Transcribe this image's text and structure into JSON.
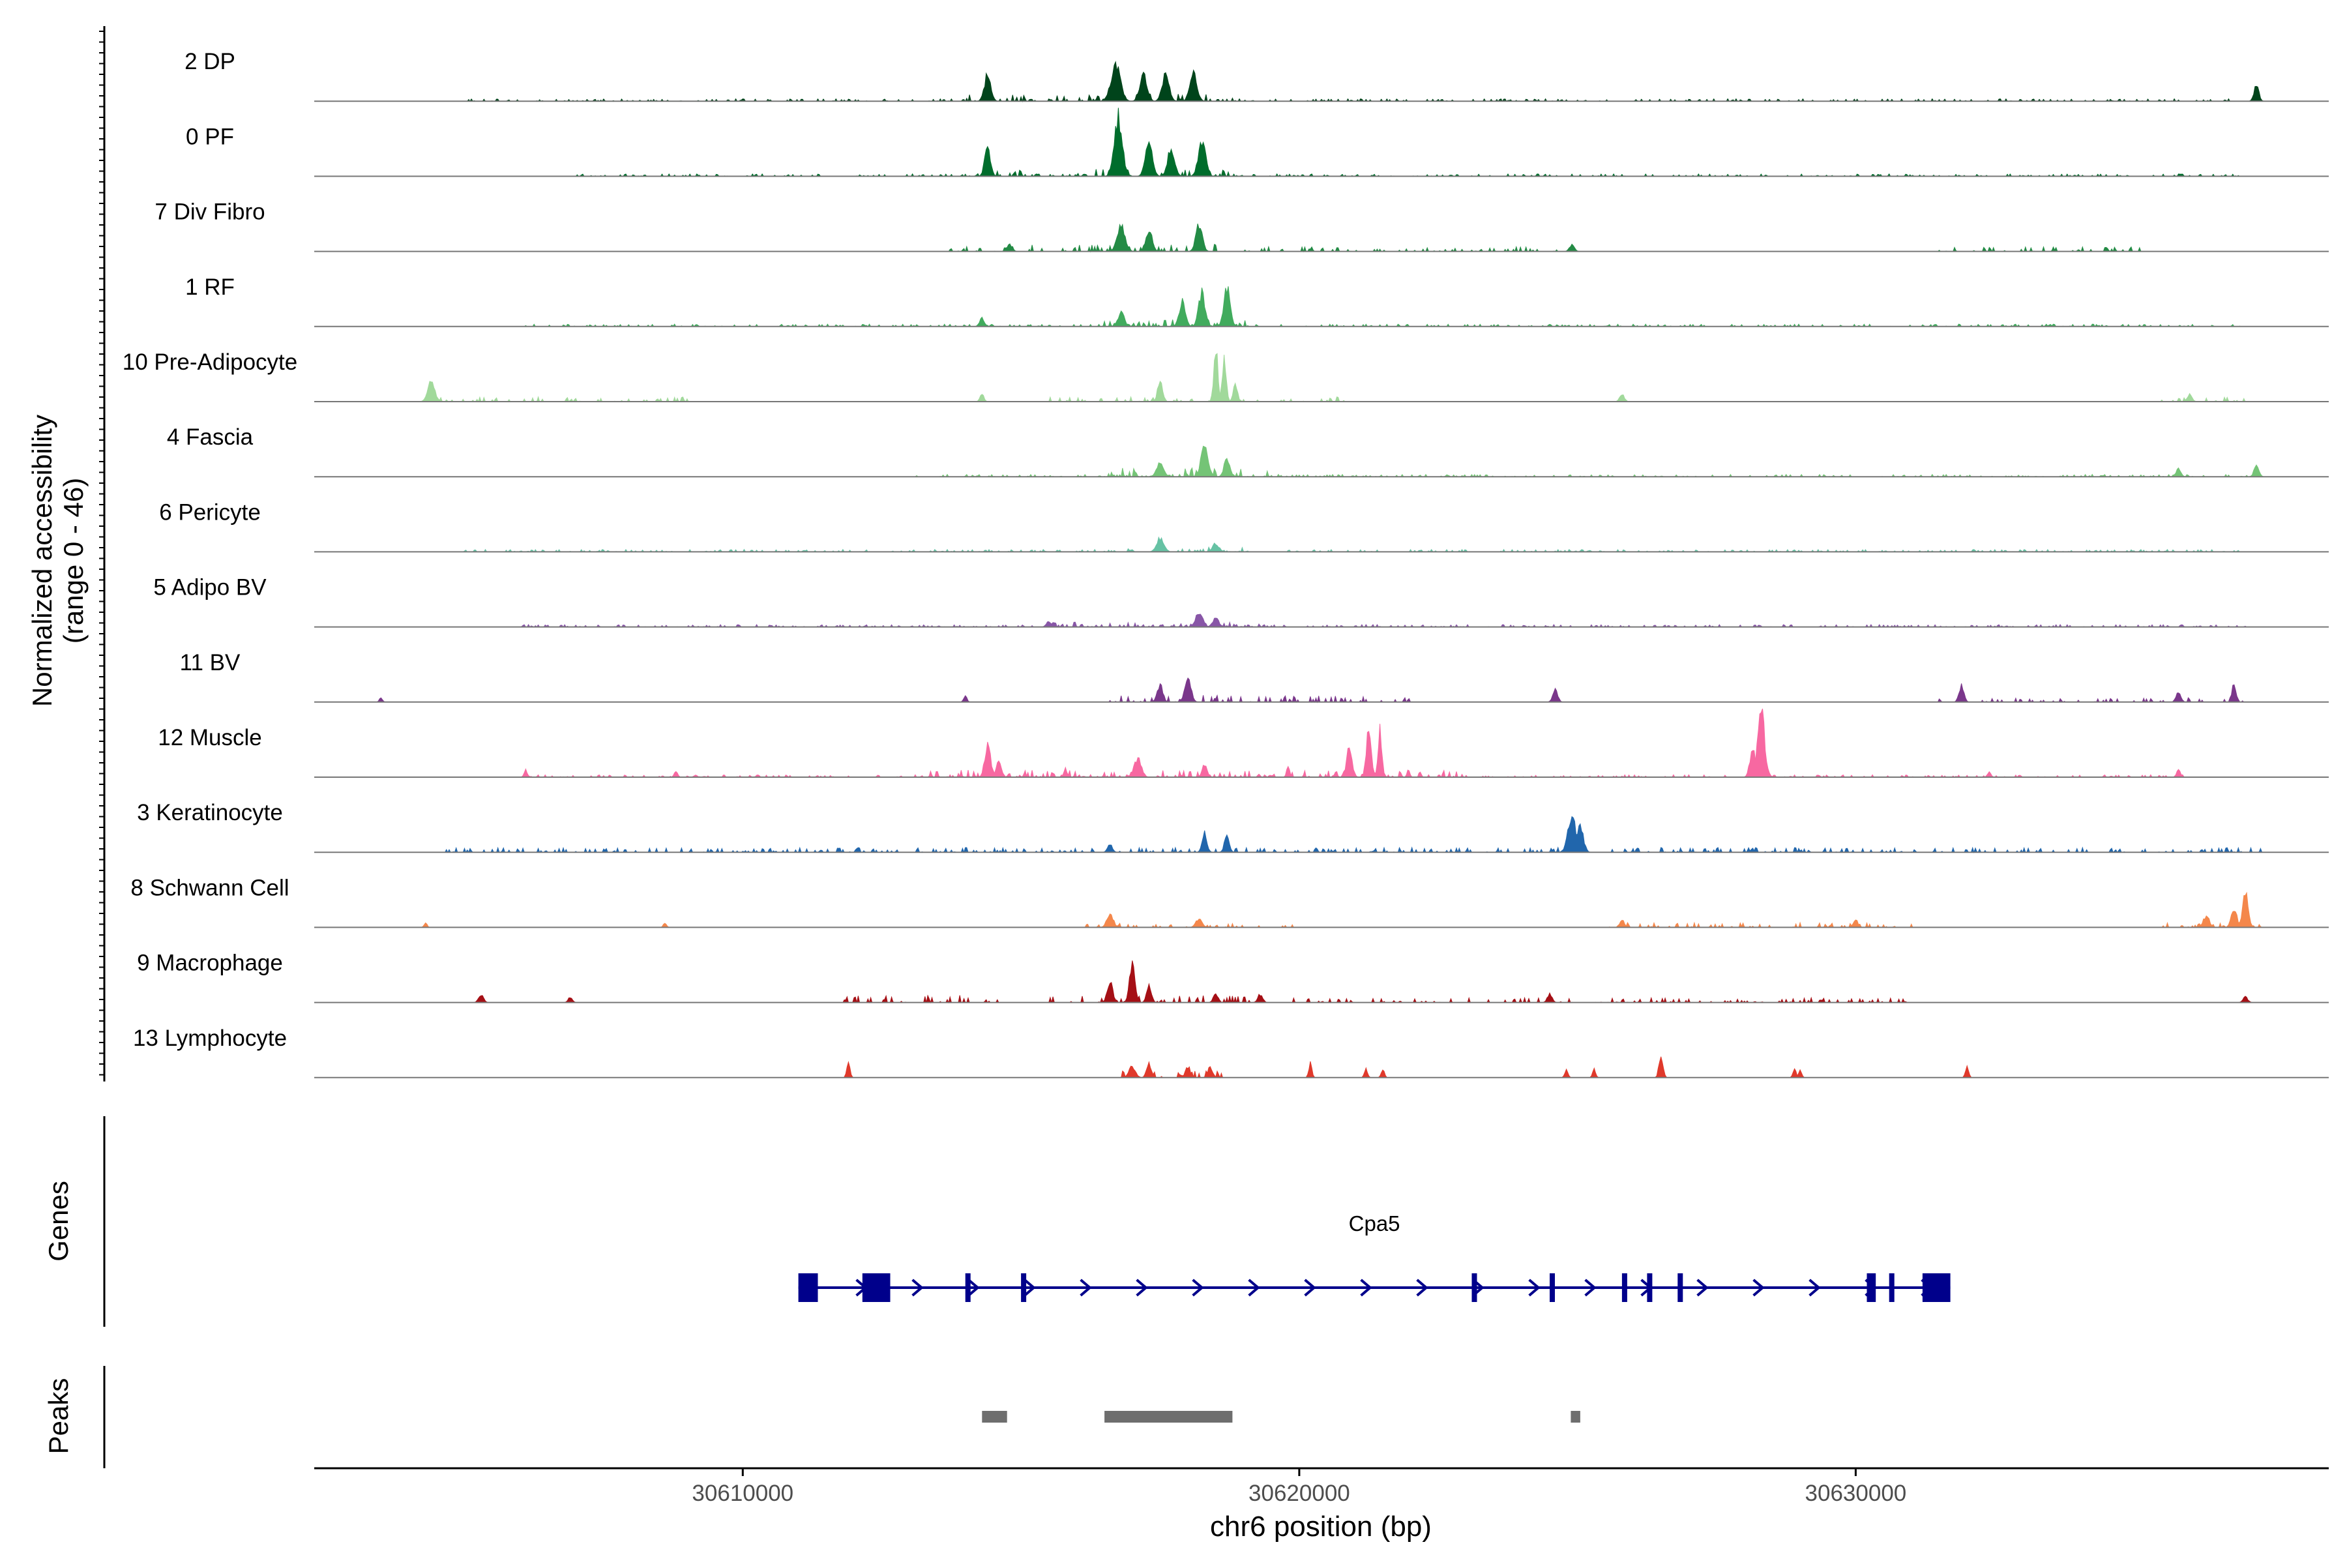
{
  "chart_data": {
    "type": "area",
    "title": "",
    "chromosome": "chr6",
    "xlabel": "chr6 position (bp)",
    "xlim": [
      30602300,
      30638500
    ],
    "x_ticks": [
      30610000,
      30620000,
      30630000
    ],
    "x_tick_labels": [
      "30610000",
      "30620000",
      "30630000"
    ],
    "ylabel": "Normalized accessibility",
    "ylabel_sub": "(range 0 - 46)",
    "ylim": [
      0,
      46
    ],
    "tracks": [
      {
        "name": "2 DP",
        "color": "#00441B",
        "peaks": [
          [
            30614400,
            80,
            19
          ],
          [
            30616700,
            120,
            26
          ],
          [
            30617200,
            90,
            19
          ],
          [
            30617600,
            90,
            19
          ],
          [
            30618100,
            90,
            19
          ],
          [
            30637200,
            60,
            12
          ]
        ],
        "noise": [
          [
            30614000,
            30618800,
            3
          ],
          [
            30605000,
            30637300,
            1
          ]
        ]
      },
      {
        "name": "0 PF",
        "color": "#006D2C",
        "peaks": [
          [
            30614400,
            70,
            22
          ],
          [
            30616750,
            100,
            42
          ],
          [
            30617300,
            90,
            24
          ],
          [
            30617700,
            90,
            20
          ],
          [
            30618250,
            90,
            26
          ]
        ],
        "noise": [
          [
            30614000,
            30619000,
            3
          ],
          [
            30607000,
            30637000,
            1
          ]
        ]
      },
      {
        "name": "7 Div Fibro",
        "color": "#238B45",
        "peaks": [
          [
            30616800,
            100,
            18
          ],
          [
            30617300,
            80,
            16
          ],
          [
            30618200,
            80,
            20
          ],
          [
            30614800,
            60,
            5
          ],
          [
            30624900,
            60,
            5
          ]
        ],
        "noise": [
          [
            30613500,
            30618500,
            3
          ],
          [
            30619000,
            30625000,
            2
          ],
          [
            30631500,
            30635200,
            2
          ]
        ]
      },
      {
        "name": "1 RF",
        "color": "#41AB5D",
        "peaks": [
          [
            30614300,
            60,
            6
          ],
          [
            30617900,
            80,
            18
          ],
          [
            30618250,
            80,
            24
          ],
          [
            30618700,
            80,
            28
          ],
          [
            30616800,
            80,
            10
          ]
        ],
        "noise": [
          [
            30616300,
            30619100,
            3
          ],
          [
            30606000,
            30637000,
            1
          ]
        ]
      },
      {
        "name": "10 Pre-Adipocyte",
        "color": "#A1D99B",
        "peaks": [
          [
            30604400,
            90,
            14
          ],
          [
            30617500,
            60,
            16
          ],
          [
            30618500,
            50,
            38
          ],
          [
            30618650,
            50,
            30
          ],
          [
            30618850,
            50,
            14
          ],
          [
            30625800,
            60,
            5
          ],
          [
            30636000,
            60,
            5
          ],
          [
            30614300,
            50,
            5
          ]
        ],
        "noise": [
          [
            30604500,
            30609000,
            2
          ],
          [
            30615500,
            30621000,
            2
          ],
          [
            30635500,
            30637000,
            2
          ]
        ]
      },
      {
        "name": "4 Fascia",
        "color": "#74C476",
        "peaks": [
          [
            30617500,
            90,
            10
          ],
          [
            30618300,
            90,
            22
          ],
          [
            30618700,
            70,
            14
          ],
          [
            30637200,
            60,
            8
          ],
          [
            30635800,
            60,
            6
          ]
        ],
        "noise": [
          [
            30616500,
            30619500,
            4
          ],
          [
            30613000,
            30637300,
            1
          ]
        ]
      },
      {
        "name": "6 Pericyte",
        "color": "#66C2A4",
        "peaks": [
          [
            30617500,
            90,
            10
          ],
          [
            30618500,
            80,
            6
          ]
        ],
        "noise": [
          [
            30616800,
            30619000,
            2
          ],
          [
            30605000,
            30637000,
            1
          ]
        ]
      },
      {
        "name": "5 Adipo BV",
        "color": "#8856A7",
        "peaks": [
          [
            30618200,
            90,
            10
          ],
          [
            30618500,
            80,
            6
          ],
          [
            30615500,
            60,
            4
          ]
        ],
        "noise": [
          [
            30615500,
            30619500,
            2
          ],
          [
            30606000,
            30637000,
            1
          ]
        ]
      },
      {
        "name": "11 BV",
        "color": "#7A378B",
        "peaks": [
          [
            30618000,
            80,
            16
          ],
          [
            30617500,
            70,
            12
          ],
          [
            30624600,
            60,
            10
          ],
          [
            30631900,
            60,
            12
          ],
          [
            30636800,
            50,
            14
          ],
          [
            30635800,
            60,
            8
          ],
          [
            30603500,
            40,
            3
          ],
          [
            30614000,
            40,
            5
          ]
        ],
        "noise": [
          [
            30616500,
            30622000,
            3
          ],
          [
            30631500,
            30637000,
            2
          ]
        ]
      },
      {
        "name": "12 Muscle",
        "color": "#F768A1",
        "peaks": [
          [
            30614400,
            70,
            24
          ],
          [
            30614600,
            60,
            14
          ],
          [
            30617100,
            90,
            14
          ],
          [
            30620900,
            70,
            20
          ],
          [
            30621250,
            60,
            38
          ],
          [
            30621450,
            50,
            34
          ],
          [
            30628300,
            90,
            46
          ],
          [
            30628150,
            70,
            22
          ],
          [
            30606100,
            40,
            5
          ],
          [
            30608800,
            40,
            5
          ],
          [
            30615800,
            40,
            6
          ],
          [
            30618300,
            60,
            10
          ],
          [
            30619800,
            40,
            7
          ],
          [
            30632400,
            40,
            4
          ],
          [
            30635800,
            50,
            5
          ]
        ],
        "noise": [
          [
            30613000,
            30623000,
            3
          ],
          [
            30606000,
            30636000,
            1
          ]
        ]
      },
      {
        "name": "3 Keratinocyte",
        "color": "#2166AC",
        "peaks": [
          [
            30624900,
            100,
            26
          ],
          [
            30625050,
            80,
            18
          ],
          [
            30618300,
            60,
            14
          ],
          [
            30618700,
            60,
            12
          ],
          [
            30616600,
            60,
            6
          ]
        ],
        "noise": [
          [
            30604500,
            30637300,
            2
          ]
        ]
      },
      {
        "name": "8 Schwann Cell",
        "color": "#F4874B",
        "peaks": [
          [
            30637000,
            70,
            26
          ],
          [
            30636800,
            70,
            14
          ],
          [
            30636300,
            80,
            8
          ],
          [
            30616600,
            80,
            10
          ],
          [
            30618200,
            80,
            6
          ],
          [
            30625800,
            60,
            5
          ],
          [
            30630000,
            60,
            5
          ],
          [
            30608600,
            40,
            3
          ],
          [
            30604300,
            40,
            3
          ]
        ],
        "noise": [
          [
            30616000,
            30620000,
            2
          ],
          [
            30625500,
            30631000,
            2
          ],
          [
            30635500,
            30637300,
            2
          ]
        ]
      },
      {
        "name": "9 Macrophage",
        "color": "#A50F15",
        "peaks": [
          [
            30617000,
            70,
            28
          ],
          [
            30617300,
            60,
            12
          ],
          [
            30616600,
            70,
            14
          ],
          [
            30605300,
            60,
            6
          ],
          [
            30606900,
            50,
            4
          ],
          [
            30618500,
            60,
            6
          ],
          [
            30619300,
            60,
            6
          ],
          [
            30624500,
            60,
            6
          ],
          [
            30637000,
            60,
            4
          ]
        ],
        "noise": [
          [
            30611800,
            30614700,
            3
          ],
          [
            30615500,
            30620000,
            3
          ],
          [
            30620000,
            30631000,
            2
          ]
        ]
      },
      {
        "name": "13 Lymphocyte",
        "color": "#E0392B",
        "peaks": [
          [
            30611900,
            40,
            12
          ],
          [
            30617000,
            80,
            8
          ],
          [
            30617300,
            60,
            10
          ],
          [
            30618000,
            60,
            8
          ],
          [
            30618400,
            60,
            8
          ],
          [
            30626500,
            50,
            16
          ],
          [
            30632000,
            40,
            8
          ],
          [
            30620200,
            40,
            10
          ],
          [
            30621200,
            40,
            6
          ],
          [
            30621500,
            40,
            6
          ],
          [
            30624800,
            40,
            6
          ],
          [
            30625300,
            40,
            6
          ],
          [
            30628900,
            40,
            6
          ],
          [
            30629000,
            40,
            6
          ]
        ],
        "noise": [
          [
            30616600,
            30618600,
            3
          ]
        ]
      }
    ],
    "genes_label": "Genes",
    "gene": {
      "name": "Cpa5",
      "strand": "+",
      "start": 30611000,
      "end": 30631700,
      "exons": [
        [
          30611000,
          30611350
        ],
        [
          30612150,
          30612650
        ],
        [
          30614000,
          30614060
        ],
        [
          30615000,
          30615090
        ],
        [
          30623100,
          30623180
        ],
        [
          30624500,
          30624560
        ],
        [
          30625800,
          30625870
        ],
        [
          30626250,
          30626330
        ],
        [
          30626800,
          30626870
        ],
        [
          30630200,
          30630360
        ],
        [
          30630600,
          30630660
        ],
        [
          30631200,
          30631700
        ]
      ]
    },
    "peaks_label": "Peaks",
    "peak_regions": [
      [
        30614300,
        30614750
      ],
      [
        30616500,
        30618800
      ],
      [
        30624880,
        30625050
      ]
    ]
  }
}
